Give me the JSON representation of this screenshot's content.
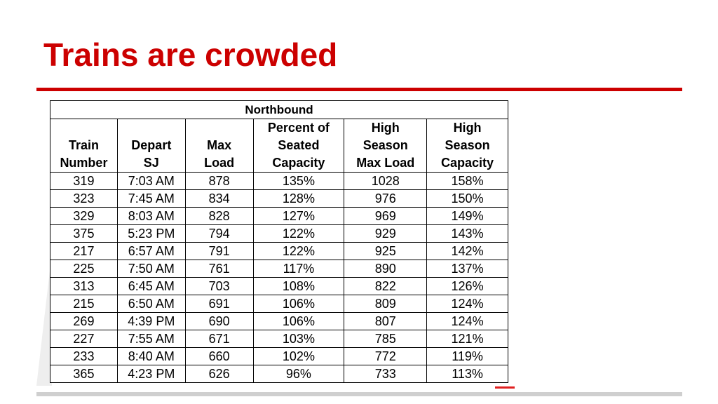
{
  "slide": {
    "title": "Trains are crowded"
  },
  "table": {
    "group_header": "Northbound",
    "columns": [
      {
        "lines": [
          "Train",
          "Number"
        ]
      },
      {
        "lines": [
          "Depart",
          "SJ"
        ]
      },
      {
        "lines": [
          "Max",
          "Load"
        ]
      },
      {
        "lines": [
          "Percent of",
          "Seated",
          "Capacity"
        ]
      },
      {
        "lines": [
          "High",
          "Season",
          "Max Load"
        ]
      },
      {
        "lines": [
          "High",
          "Season",
          "Capacity"
        ]
      }
    ],
    "rows": [
      [
        "319",
        "7:03 AM",
        "878",
        "135%",
        "1028",
        "158%"
      ],
      [
        "323",
        "7:45 AM",
        "834",
        "128%",
        "976",
        "150%"
      ],
      [
        "329",
        "8:03 AM",
        "828",
        "127%",
        "969",
        "149%"
      ],
      [
        "375",
        "5:23 PM",
        "794",
        "122%",
        "929",
        "143%"
      ],
      [
        "217",
        "6:57 AM",
        "791",
        "122%",
        "925",
        "142%"
      ],
      [
        "225",
        "7:50 AM",
        "761",
        "117%",
        "890",
        "137%"
      ],
      [
        "313",
        "6:45 AM",
        "703",
        "108%",
        "822",
        "126%"
      ],
      [
        "215",
        "6:50 AM",
        "691",
        "106%",
        "809",
        "124%"
      ],
      [
        "269",
        "4:39 PM",
        "690",
        "106%",
        "807",
        "124%"
      ],
      [
        "227",
        "7:55 AM",
        "671",
        "103%",
        "785",
        "121%"
      ],
      [
        "233",
        "8:40 AM",
        "660",
        "102%",
        "772",
        "119%"
      ],
      [
        "365",
        "4:23 PM",
        "626",
        "96%",
        "733",
        "113%"
      ]
    ]
  },
  "colors": {
    "title": "#cc0000",
    "rule": "#cc0000",
    "footer_rule": "#cfcfcf"
  }
}
